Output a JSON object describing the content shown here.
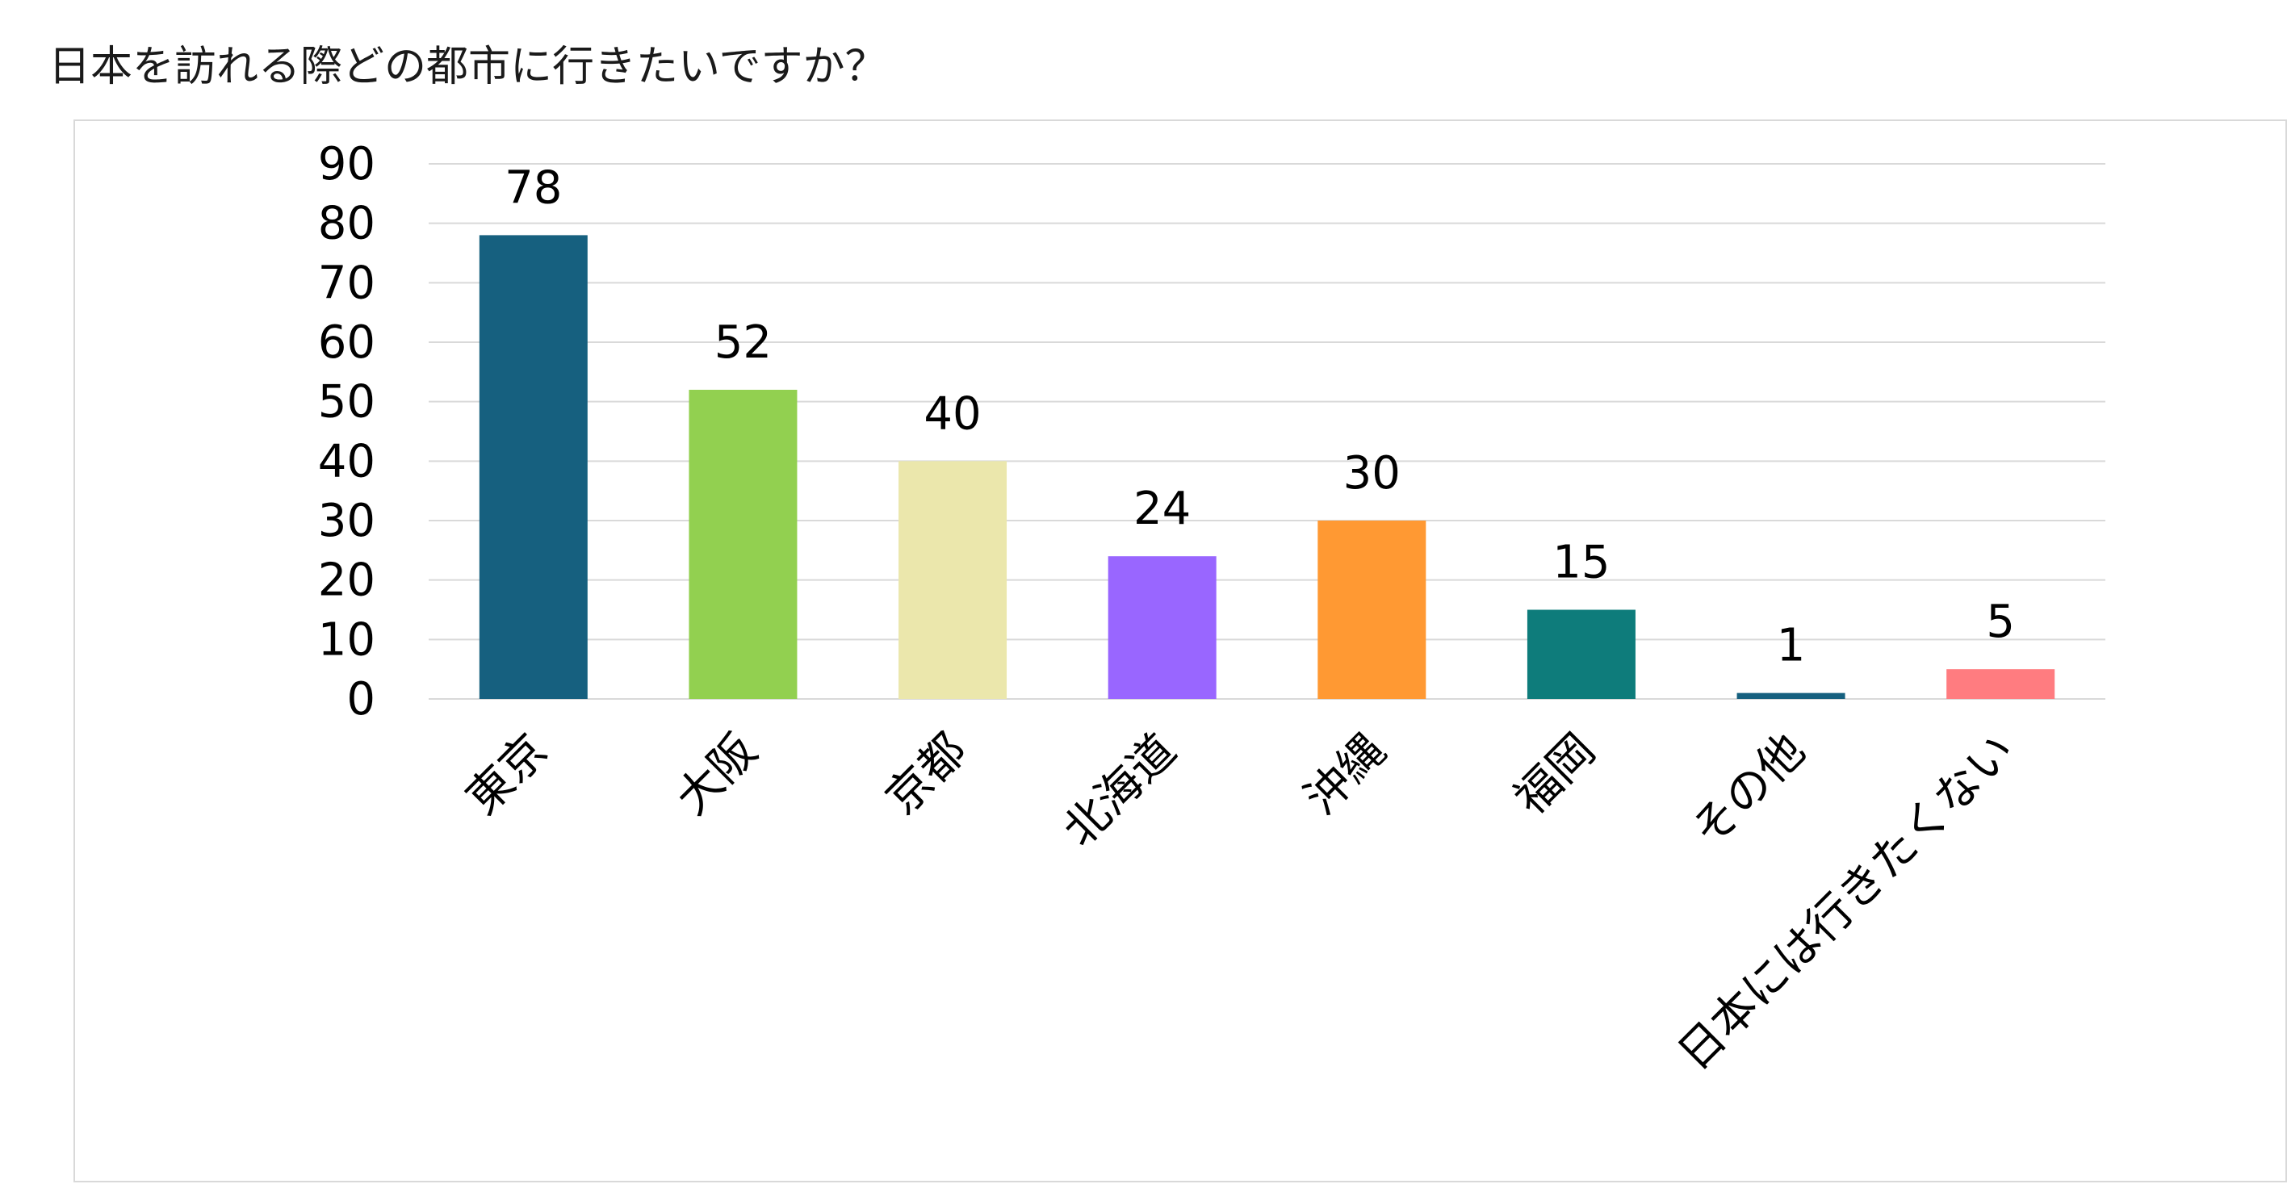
{
  "title": "日本を訪れる際どの都市に行きたいですか？",
  "chart_data": {
    "type": "bar",
    "title": "",
    "xlabel": "",
    "ylabel": "",
    "categories": [
      "東京",
      "大阪",
      "京都",
      "北海道",
      "沖縄",
      "福岡",
      "その他",
      "日本には行きたくない"
    ],
    "values": [
      78,
      52,
      40,
      24,
      30,
      15,
      1,
      5
    ],
    "colors": [
      "#16607f",
      "#92d050",
      "#ebe7ac",
      "#9966ff",
      "#ff9933",
      "#0e7c7b",
      "#16607f",
      "#ff7c80"
    ],
    "ylim": [
      0,
      90
    ],
    "yticks": [
      "0",
      "10",
      "20",
      "30",
      "40",
      "50",
      "60",
      "70",
      "80",
      "90"
    ],
    "grid": true,
    "legend": "none",
    "gridline_color": "#d9d9d9",
    "label_color": "#000000"
  }
}
